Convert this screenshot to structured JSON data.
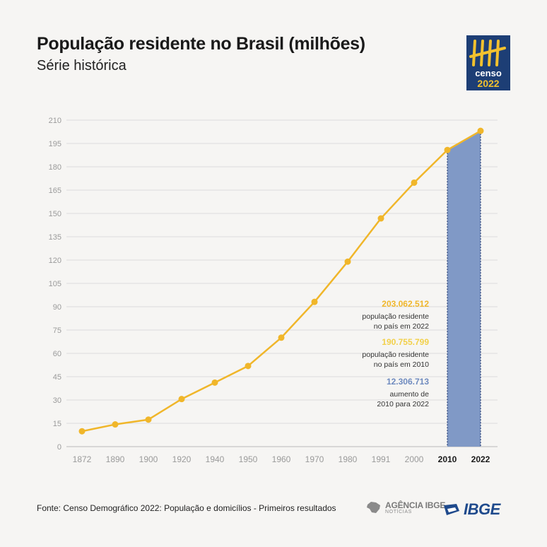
{
  "header": {
    "title": "População residente no Brasil (milhões)",
    "subtitle": "Série histórica"
  },
  "logo": {
    "text": "censo",
    "year": "2022",
    "colors": {
      "background": "#1d3e75",
      "marks": "#f2c12e"
    }
  },
  "chart_data": {
    "type": "line",
    "categories": [
      "1872",
      "1890",
      "1900",
      "1920",
      "1940",
      "1950",
      "1960",
      "1970",
      "1980",
      "1991",
      "2000",
      "2010",
      "2022"
    ],
    "bold_categories": [
      "2010",
      "2022"
    ],
    "values": [
      9.9,
      14.3,
      17.4,
      30.6,
      41.2,
      51.9,
      70.1,
      93.1,
      119.0,
      146.8,
      169.8,
      190.8,
      203.1
    ],
    "ylim": [
      0,
      210
    ],
    "yticks": [
      0,
      15,
      30,
      45,
      60,
      75,
      90,
      105,
      120,
      135,
      150,
      165,
      180,
      195,
      210
    ],
    "grid": true,
    "highlight": {
      "from": "2010",
      "to": "2022",
      "color": "#8099c6"
    },
    "line_color": "#f0b62a",
    "annotations": [
      {
        "value": "203.062.512",
        "text1": "população residente",
        "text2": "no país em 2022",
        "color": "#f0b62a"
      },
      {
        "value": "190.755.799",
        "text1": "população residente",
        "text2": "no país em 2010",
        "color": "#f2d04a"
      },
      {
        "value": "12.306.713",
        "text1": "aumento de",
        "text2": "2010 para 2022",
        "color": "#6f8bbf"
      }
    ]
  },
  "footer": {
    "source": "Fonte: Censo Demográfico 2022: População e domicílios - Primeiros resultados",
    "agencia_top": "AGÊNCIA IBGE",
    "agencia_bottom": "NOTÍCIAS",
    "ibge": "IBGE"
  }
}
